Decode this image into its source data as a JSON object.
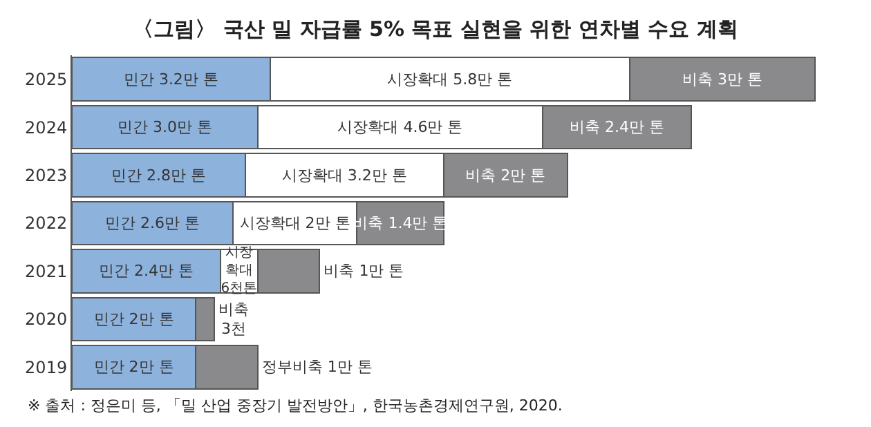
{
  "chart_data": {
    "type": "bar",
    "orientation": "horizontal",
    "stacked": true,
    "title": "〈그림〉 국산 밀 자급률 5% 목표 실현을 위한 연차별 수요 계획",
    "categories": [
      "2025",
      "2024",
      "2023",
      "2022",
      "2021",
      "2020",
      "2019"
    ],
    "series": [
      {
        "color": "#8db3dc",
        "values": [
          3.2,
          3.0,
          2.8,
          2.6,
          2.4,
          2,
          2
        ],
        "value_labels": [
          "민간 3.2만 톤",
          "민간 3.0만 톤",
          "민간 2.8만 톤",
          "민간 2.6만 톤",
          "민간 2.4만 톤",
          "민간 2만 톤",
          "민간 2만 톤"
        ]
      },
      {
        "color": "#ffffff",
        "values": [
          5.8,
          4.6,
          3.2,
          2,
          0.6,
          null,
          null
        ],
        "value_labels": [
          "시장확대 5.8만 톤",
          "시장확대 4.6만 톤",
          "시장확대 3.2만 톤",
          "시장확대 2만 톤",
          "시장\n확대\n6천톤",
          null,
          null
        ]
      },
      {
        "color": "#8a8a8c",
        "values": [
          3,
          2.4,
          2,
          1.4,
          1,
          0.3,
          1
        ],
        "value_labels": [
          "비축 3만 톤",
          "비축 2.4만 톤",
          "비축 2만 톤",
          "비축 1.4만 톤",
          "비축 1만 톤",
          "비축\n3천",
          "정부비축 1만 톤"
        ]
      }
    ],
    "annotations": [
      "※ 출처 : 정은미 등, 「밀 산업 중장기 발전방안」, 한국농촌경제연구원, 2020."
    ]
  }
}
